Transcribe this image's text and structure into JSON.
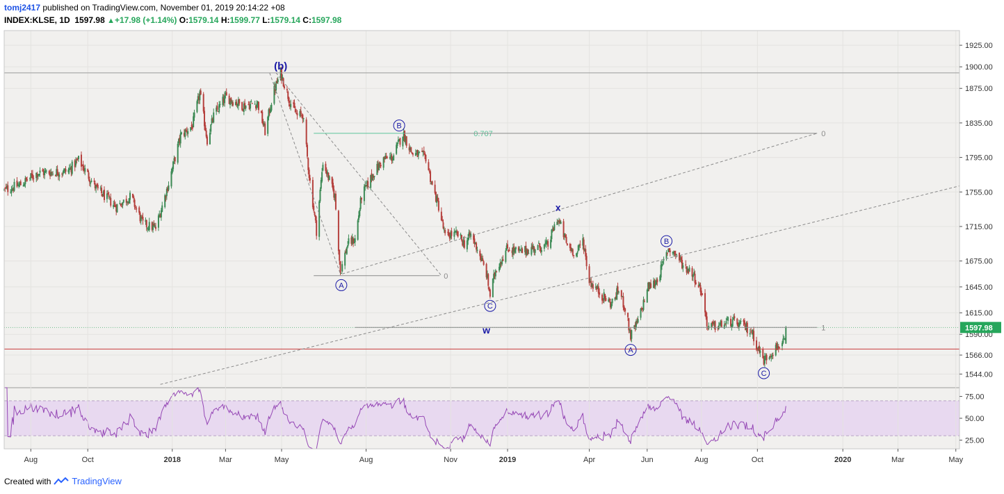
{
  "header": {
    "author": "tomj2417",
    "published_text": "published on TradingView.com, November 01, 2019 20:14:22 +08",
    "symbol": "INDEX:KLSE, 1D",
    "last": "1597.98",
    "change": "+17.98 (+1.14%)",
    "open_label": "O:",
    "open": "1579.14",
    "high_label": "H:",
    "high": "1599.77",
    "low_label": "L:",
    "low": "1579.14",
    "close_label": "C:",
    "close": "1597.98"
  },
  "footer": {
    "created_with": "Created with",
    "brand": "TradingView"
  },
  "colors": {
    "background": "#f1f0ee",
    "up": "#3c8a55",
    "down": "#b5403d",
    "rsi": "#9547b5",
    "rsi_band": "#e8d9f0",
    "hline": "#c93b3b",
    "fib": "#5cc49a",
    "wave_label": "#1a1aa6",
    "price_tag": "#26a65b"
  },
  "chart_data": {
    "type": "candlestick",
    "title": "INDEX:KLSE, 1D",
    "y_axis": {
      "range": [
        1529,
        1942
      ],
      "ticks": [
        1925,
        1900,
        1875,
        1835,
        1795,
        1755,
        1715,
        1675,
        1645,
        1615,
        1590,
        1566,
        1544
      ]
    },
    "x_axis": {
      "range": [
        "2017-07-03",
        "2020-05-08"
      ],
      "ticks": [
        {
          "label": "Aug",
          "date": "2017-08-01"
        },
        {
          "label": "Oct",
          "date": "2017-10-02"
        },
        {
          "label": "2018",
          "date": "2018-01-02",
          "bold": true
        },
        {
          "label": "Mar",
          "date": "2018-03-01"
        },
        {
          "label": "May",
          "date": "2018-05-01"
        },
        {
          "label": "Aug",
          "date": "2018-08-01"
        },
        {
          "label": "Nov",
          "date": "2018-11-01"
        },
        {
          "label": "2019",
          "date": "2019-01-02",
          "bold": true
        },
        {
          "label": "Apr",
          "date": "2019-04-01"
        },
        {
          "label": "Jun",
          "date": "2019-06-03"
        },
        {
          "label": "Aug",
          "date": "2019-08-01"
        },
        {
          "label": "Oct",
          "date": "2019-10-01"
        },
        {
          "label": "2020",
          "date": "2020-01-02",
          "bold": true
        },
        {
          "label": "Mar",
          "date": "2020-03-02"
        },
        {
          "label": "May",
          "date": "2020-05-04"
        }
      ]
    },
    "anchors": [
      {
        "date": "2017-07-03",
        "close": 1757
      },
      {
        "date": "2017-07-20",
        "close": 1763
      },
      {
        "date": "2017-08-08",
        "close": 1777
      },
      {
        "date": "2017-09-10",
        "close": 1779
      },
      {
        "date": "2017-09-22",
        "close": 1792
      },
      {
        "date": "2017-10-12",
        "close": 1758
      },
      {
        "date": "2017-11-02",
        "close": 1738
      },
      {
        "date": "2017-11-18",
        "close": 1750
      },
      {
        "date": "2017-12-01",
        "close": 1718
      },
      {
        "date": "2017-12-15",
        "close": 1713
      },
      {
        "date": "2017-12-29",
        "close": 1765
      },
      {
        "date": "2018-01-11",
        "close": 1820
      },
      {
        "date": "2018-01-24",
        "close": 1832
      },
      {
        "date": "2018-02-01",
        "close": 1870
      },
      {
        "date": "2018-02-09",
        "close": 1815
      },
      {
        "date": "2018-02-16",
        "close": 1843
      },
      {
        "date": "2018-03-01",
        "close": 1865
      },
      {
        "date": "2018-03-20",
        "close": 1855
      },
      {
        "date": "2018-04-05",
        "close": 1858
      },
      {
        "date": "2018-04-13",
        "close": 1825
      },
      {
        "date": "2018-04-22",
        "close": 1870
      },
      {
        "date": "2018-04-30",
        "close": 1893
      },
      {
        "date": "2018-05-10",
        "close": 1860
      },
      {
        "date": "2018-05-18",
        "close": 1843
      },
      {
        "date": "2018-05-24",
        "close": 1845
      },
      {
        "date": "2018-05-31",
        "close": 1775
      },
      {
        "date": "2018-06-08",
        "close": 1710
      },
      {
        "date": "2018-06-15",
        "close": 1790
      },
      {
        "date": "2018-06-28",
        "close": 1750
      },
      {
        "date": "2018-07-04",
        "close": 1662
      },
      {
        "date": "2018-07-12",
        "close": 1695
      },
      {
        "date": "2018-07-20",
        "close": 1700
      },
      {
        "date": "2018-07-27",
        "close": 1750
      },
      {
        "date": "2018-08-08",
        "close": 1775
      },
      {
        "date": "2018-08-20",
        "close": 1793
      },
      {
        "date": "2018-08-30",
        "close": 1795
      },
      {
        "date": "2018-09-10",
        "close": 1823
      },
      {
        "date": "2018-09-20",
        "close": 1800
      },
      {
        "date": "2018-10-05",
        "close": 1795
      },
      {
        "date": "2018-10-12",
        "close": 1762
      },
      {
        "date": "2018-10-19",
        "close": 1738
      },
      {
        "date": "2018-10-26",
        "close": 1703
      },
      {
        "date": "2018-11-01",
        "close": 1706
      },
      {
        "date": "2018-11-09",
        "close": 1705
      },
      {
        "date": "2018-11-16",
        "close": 1695
      },
      {
        "date": "2018-11-23",
        "close": 1705
      },
      {
        "date": "2018-11-30",
        "close": 1690
      },
      {
        "date": "2018-12-10",
        "close": 1660
      },
      {
        "date": "2018-12-14",
        "close": 1635
      },
      {
        "date": "2018-12-20",
        "close": 1665
      },
      {
        "date": "2019-01-02",
        "close": 1690
      },
      {
        "date": "2019-01-15",
        "close": 1685
      },
      {
        "date": "2019-01-30",
        "close": 1690
      },
      {
        "date": "2019-02-15",
        "close": 1693
      },
      {
        "date": "2019-02-25",
        "close": 1725
      },
      {
        "date": "2019-03-01",
        "close": 1715
      },
      {
        "date": "2019-03-08",
        "close": 1693
      },
      {
        "date": "2019-03-18",
        "close": 1683
      },
      {
        "date": "2019-03-25",
        "close": 1700
      },
      {
        "date": "2019-04-01",
        "close": 1652
      },
      {
        "date": "2019-04-15",
        "close": 1635
      },
      {
        "date": "2019-04-25",
        "close": 1625
      },
      {
        "date": "2019-05-03",
        "close": 1642
      },
      {
        "date": "2019-05-10",
        "close": 1620
      },
      {
        "date": "2019-05-16",
        "close": 1588
      },
      {
        "date": "2019-05-24",
        "close": 1605
      },
      {
        "date": "2019-06-04",
        "close": 1645
      },
      {
        "date": "2019-06-12",
        "close": 1650
      },
      {
        "date": "2019-06-18",
        "close": 1665
      },
      {
        "date": "2019-06-26",
        "close": 1690
      },
      {
        "date": "2019-07-05",
        "close": 1682
      },
      {
        "date": "2019-07-12",
        "close": 1670
      },
      {
        "date": "2019-07-22",
        "close": 1662
      },
      {
        "date": "2019-08-01",
        "close": 1640
      },
      {
        "date": "2019-08-08",
        "close": 1598
      },
      {
        "date": "2019-08-20",
        "close": 1600
      },
      {
        "date": "2019-09-01",
        "close": 1605
      },
      {
        "date": "2019-09-15",
        "close": 1600
      },
      {
        "date": "2019-09-25",
        "close": 1593
      },
      {
        "date": "2019-10-01",
        "close": 1575
      },
      {
        "date": "2019-10-08",
        "close": 1560
      },
      {
        "date": "2019-10-15",
        "close": 1568
      },
      {
        "date": "2019-10-25",
        "close": 1578
      },
      {
        "date": "2019-10-31",
        "close": 1580
      },
      {
        "date": "2019-11-01",
        "close": 1597.98
      }
    ],
    "horizontal_lines": [
      {
        "value": 1893,
        "color": "#9a9a9a"
      },
      {
        "value": 1573,
        "color": "#c93b3b"
      },
      {
        "value": 1597.98,
        "color": "#6dbb8a",
        "style": "dotted"
      }
    ],
    "fib_levels": [
      {
        "label": "0.707",
        "value": 1823,
        "color": "#5cc49a",
        "from": "2018-06-05",
        "to": "2018-09-12"
      },
      {
        "label": "0",
        "value": 1823,
        "color": "#8a8a8a",
        "from": "2018-09-12",
        "to": "2019-12-05"
      },
      {
        "label": "0",
        "value": 1658,
        "color": "#8a8a8a",
        "from": "2018-06-05",
        "to": "2018-10-20"
      },
      {
        "label": "1",
        "value": 1598,
        "color": "#8a8a8a",
        "from": "2018-07-20",
        "to": "2019-12-05"
      }
    ],
    "trendlines": [
      {
        "from": {
          "date": "2018-07-06",
          "value": 1660
        },
        "to": {
          "date": "2019-12-05",
          "value": 1823
        },
        "style": "dashed"
      },
      {
        "from": {
          "date": "2017-12-20",
          "value": 1532
        },
        "to": {
          "date": "2020-05-08",
          "value": 1762
        },
        "style": "dashed"
      },
      {
        "from": {
          "date": "2018-04-18",
          "value": 1893
        },
        "to": {
          "date": "2018-07-04",
          "value": 1660
        },
        "style": "dashed"
      },
      {
        "from": {
          "date": "2018-04-25",
          "value": 1893
        },
        "to": {
          "date": "2018-10-22",
          "value": 1658
        },
        "style": "dashed"
      }
    ],
    "wave_labels": [
      {
        "text": "(b)",
        "date": "2018-04-30",
        "value": 1901,
        "style": "plain-bold"
      },
      {
        "text": "A",
        "date": "2018-07-05",
        "value": 1647,
        "style": "circled"
      },
      {
        "text": "B",
        "date": "2018-09-06",
        "value": 1832,
        "style": "circled"
      },
      {
        "text": "C",
        "date": "2018-12-14",
        "value": 1623,
        "style": "circled"
      },
      {
        "text": "w",
        "date": "2018-12-10",
        "value": 1595,
        "style": "plain-bold"
      },
      {
        "text": "x",
        "date": "2019-02-26",
        "value": 1737,
        "style": "plain-bold"
      },
      {
        "text": "A",
        "date": "2019-05-16",
        "value": 1572,
        "style": "circled"
      },
      {
        "text": "B",
        "date": "2019-06-24",
        "value": 1698,
        "style": "circled"
      },
      {
        "text": "C",
        "date": "2019-10-08",
        "value": 1545,
        "style": "circled"
      }
    ],
    "last_price_label": "1597.98",
    "rsi": {
      "range": [
        15,
        85
      ],
      "ticks": [
        75.0,
        50.0,
        25.0
      ],
      "tick_labels": [
        "75.00",
        "50.00",
        "25.00"
      ],
      "band": [
        30,
        70
      ],
      "last_value": 64
    }
  }
}
